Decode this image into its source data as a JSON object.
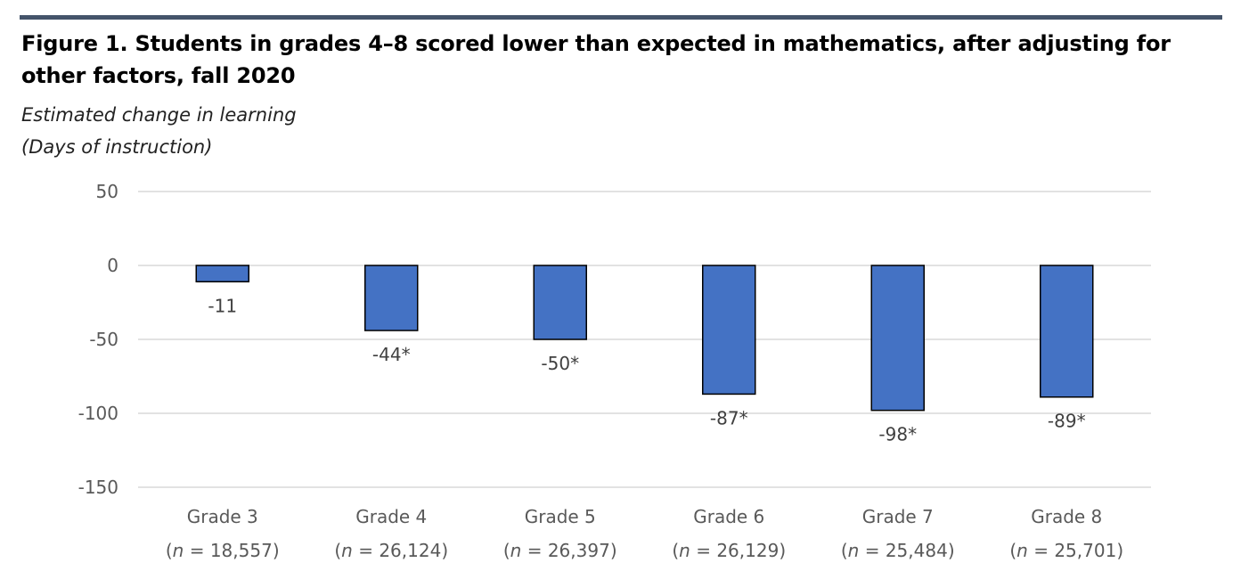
{
  "title": "Figure 1. Students in grades 4–8 scored lower than expected in mathematics, after adjusting for other factors, fall 2020",
  "colors": {
    "bar": "#4472c4",
    "bar_outline": "#000000",
    "grid": "#d9d9d9",
    "rule": "#44546a"
  },
  "chart_data": {
    "type": "bar",
    "title": "Figure 1. Students in grades 4–8 scored lower than expected in mathematics, after adjusting for other factors, fall 2020",
    "ylabel": [
      "Estimated change in learning",
      "(Days of instruction)"
    ],
    "xlabel": "",
    "ylim": [
      -150,
      50
    ],
    "yticks": [
      50,
      0,
      -50,
      -100,
      -150
    ],
    "grid": true,
    "legend": "none",
    "categories": [
      "Grade 3",
      "Grade 4",
      "Grade 5",
      "Grade 6",
      "Grade 7",
      "Grade 8"
    ],
    "category_n": [
      "18,557",
      "26,124",
      "26,397",
      "26,129",
      "25,484",
      "25,701"
    ],
    "values": [
      -11,
      -44,
      -50,
      -87,
      -98,
      -89
    ],
    "data_labels": [
      "-11",
      "-44*",
      "-50*",
      "-87*",
      "-98*",
      "-89*"
    ]
  }
}
